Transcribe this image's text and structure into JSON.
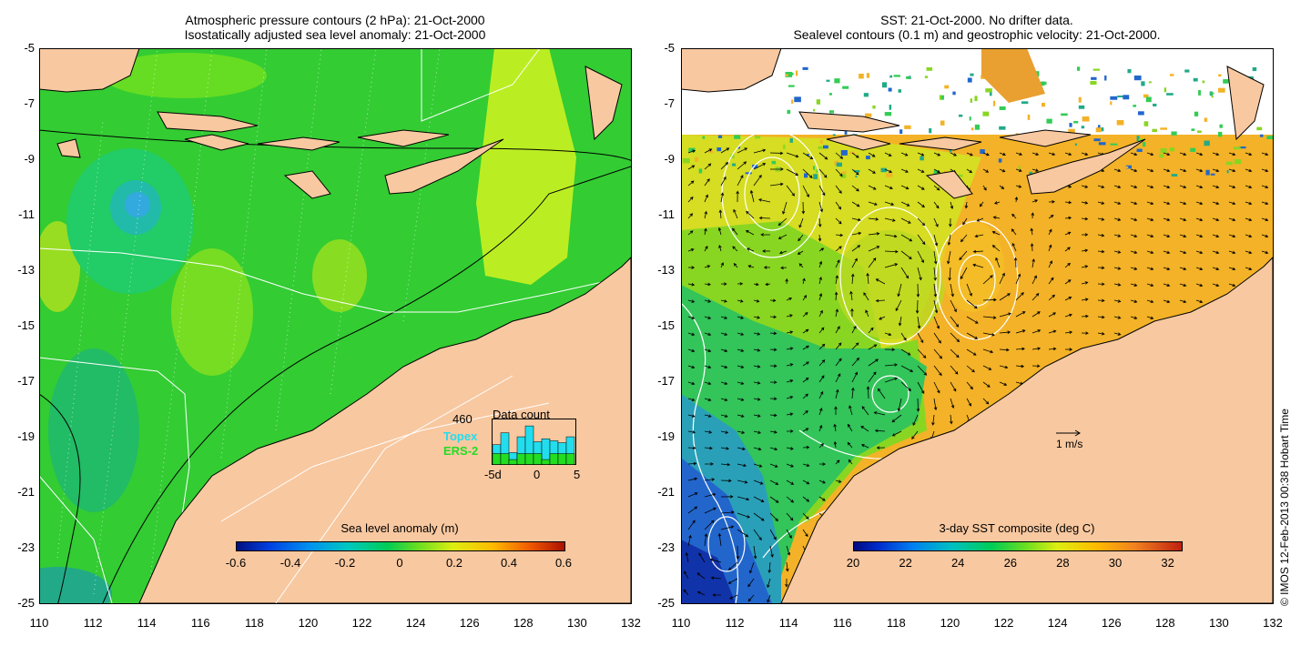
{
  "left_panel": {
    "title_line1": "Atmospheric pressure contours (2 hPa): 21-Oct-2000",
    "title_line2": "Isostatically adjusted sea level anomaly: 21-Oct-2000",
    "colorbar": {
      "title": "Sea level anomaly (m)",
      "labels": [
        "-0.6",
        "-0.4",
        "-0.2",
        "0",
        "0.2",
        "0.4",
        "0.6"
      ],
      "range": [
        -0.6,
        0.6
      ]
    },
    "inset": {
      "title": "Data count",
      "max_label": "460",
      "series": [
        {
          "name": "Topex",
          "color": "#22ddee"
        },
        {
          "name": "ERS-2",
          "color": "#22dd22"
        }
      ],
      "x_labels": [
        "-5d",
        "0",
        "5"
      ],
      "topex_counts": [
        200,
        320,
        120,
        280,
        390,
        230,
        260,
        240,
        220,
        280
      ],
      "ers_counts": [
        110,
        110,
        50,
        110,
        110,
        110,
        50,
        110,
        110,
        110
      ]
    }
  },
  "right_panel": {
    "title_line1": "SST: 21-Oct-2000. No drifter data.",
    "title_line2": "Sealevel contours (0.1 m) and geostrophic velocity: 21-Oct-2000.",
    "colorbar": {
      "title": "3-day SST composite (deg C)",
      "labels": [
        "20",
        "22",
        "24",
        "26",
        "28",
        "30",
        "32"
      ],
      "range": [
        20,
        32.5
      ]
    },
    "scale_label": "1 m/s"
  },
  "axes": {
    "y_labels": [
      "-5",
      "-7",
      "-9",
      "-11",
      "-13",
      "-15",
      "-17",
      "-19",
      "-21",
      "-23",
      "-25"
    ],
    "x_labels": [
      "110",
      "112",
      "114",
      "116",
      "118",
      "120",
      "122",
      "124",
      "126",
      "128",
      "130",
      "132"
    ]
  },
  "credit": "© IMOS 12-Feb-2013 00:38 Hobart Time",
  "colors": {
    "land": "#f8c8a0",
    "ocean_green": "#33cc33",
    "ocean_yellow": "#ccee22",
    "sst_orange": "#f3b227"
  }
}
